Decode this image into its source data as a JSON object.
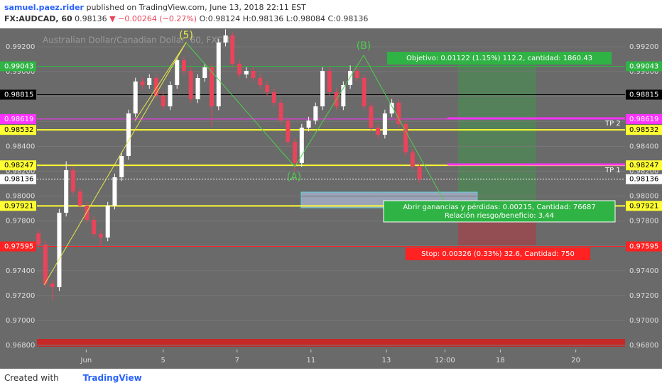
{
  "header": {
    "author": "samuel.paez.rider",
    "published": "published on TradingView.com, June 13, 2018 22:11 EST",
    "symbol": "FX:AUDCAD, 60",
    "last": "0.98136",
    "change": "▼ −0.00264 (−0.27%)",
    "ohlc": "O:0.98124 H:0.98136 L:0.98084 C:0.98136"
  },
  "footer": {
    "created": "Created with",
    "brand": "TradingView"
  },
  "chart_data": {
    "type": "candlestick",
    "title": "Australian Dollar/Canadian Dollar, 60, FXCM",
    "up_color": "#ffffff",
    "down_color": "#e8445a",
    "background": "#6a6a6a",
    "x": [
      1,
      5.5,
      10,
      14.5,
      19,
      23.5,
      28,
      32.5,
      37,
      41.5,
      46,
      50.5,
      55,
      59.5,
      64,
      68.5,
      73,
      77.5,
      82,
      86.5,
      91,
      95.5,
      100,
      104.5,
      109,
      113.5,
      118,
      122.5,
      127,
      131.5,
      136,
      140.5,
      145,
      149.5,
      154,
      158.5,
      163,
      167.5,
      172,
      176.5,
      181,
      185.5,
      190,
      194.5,
      199,
      203.5,
      208,
      212.5,
      217,
      221.5,
      226,
      230.5,
      235,
      239.5,
      244,
      248.5
    ],
    "open": [
      0.977,
      0.9761,
      0.97296,
      0.97268,
      0.97866,
      0.98208,
      0.98037,
      0.97923,
      0.97809,
      0.97695,
      0.97667,
      0.97923,
      0.98151,
      0.98322,
      0.98664,
      0.98921,
      0.98892,
      0.98949,
      0.98807,
      0.98721,
      0.98892,
      0.99092,
      0.99006,
      0.98778,
      0.98949,
      0.99035,
      0.98721,
      0.99234,
      0.99291,
      0.99063,
      0.98978,
      0.99006,
      0.98949,
      0.98892,
      0.98835,
      0.9875,
      0.98607,
      0.98436,
      0.98265,
      0.9855,
      0.98607,
      0.98721,
      0.99006,
      0.98835,
      0.98721,
      0.98892,
      0.99006,
      0.98949,
      0.98721,
      0.9855,
      0.98493,
      0.98664,
      0.9875,
      0.98579,
      0.98351,
      0.98237
    ],
    "high": [
      0.9773,
      0.9764,
      0.97326,
      0.97896,
      0.9828,
      0.98238,
      0.98067,
      0.97953,
      0.97839,
      0.97725,
      0.97953,
      0.98181,
      0.98352,
      0.98694,
      0.98951,
      0.98951,
      0.98979,
      0.98979,
      0.98837,
      0.98922,
      0.99122,
      0.99122,
      0.99036,
      0.98979,
      0.99065,
      0.99065,
      0.99264,
      0.9934,
      0.99321,
      0.99093,
      0.99036,
      0.99036,
      0.98979,
      0.98922,
      0.98865,
      0.9878,
      0.98637,
      0.98466,
      0.9858,
      0.98637,
      0.98751,
      0.99036,
      0.99036,
      0.98865,
      0.98922,
      0.9905,
      0.99036,
      0.98979,
      0.98751,
      0.9858,
      0.98694,
      0.9878,
      0.9878,
      0.98609,
      0.98381,
      0.98267
    ],
    "low": [
      0.9758,
      0.97266,
      0.9716,
      0.97238,
      0.97836,
      0.98007,
      0.97893,
      0.97779,
      0.97665,
      0.976,
      0.97637,
      0.97893,
      0.98121,
      0.98292,
      0.98634,
      0.98862,
      0.98862,
      0.98777,
      0.98691,
      0.98691,
      0.98862,
      0.98976,
      0.98748,
      0.98748,
      0.98919,
      0.9856,
      0.98691,
      0.99204,
      0.99033,
      0.98948,
      0.98948,
      0.98919,
      0.98862,
      0.98805,
      0.9872,
      0.98577,
      0.98406,
      0.982,
      0.98235,
      0.9852,
      0.98577,
      0.98691,
      0.98805,
      0.98691,
      0.98691,
      0.98862,
      0.98919,
      0.98691,
      0.9852,
      0.98463,
      0.98463,
      0.98634,
      0.98549,
      0.98321,
      0.98207,
      0.98106
    ],
    "close": [
      0.9761,
      0.97296,
      0.97268,
      0.97866,
      0.98208,
      0.98037,
      0.97923,
      0.97809,
      0.97695,
      0.97667,
      0.97923,
      0.98151,
      0.98322,
      0.98664,
      0.98921,
      0.98892,
      0.98949,
      0.98807,
      0.98721,
      0.98892,
      0.99092,
      0.99006,
      0.98778,
      0.98949,
      0.99035,
      0.98721,
      0.99234,
      0.99291,
      0.99063,
      0.98978,
      0.99006,
      0.98949,
      0.98892,
      0.98835,
      0.9875,
      0.98607,
      0.98436,
      0.98265,
      0.9855,
      0.98607,
      0.98721,
      0.99006,
      0.98835,
      0.98721,
      0.98892,
      0.99006,
      0.98949,
      0.98721,
      0.9855,
      0.98493,
      0.98664,
      0.9875,
      0.98579,
      0.98351,
      0.98237,
      0.98136
    ],
    "xlim": [
      0,
      382
    ],
    "xticks": [
      {
        "value": 32,
        "label": "Jun"
      },
      {
        "value": 82,
        "label": "5"
      },
      {
        "value": 130,
        "label": "7"
      },
      {
        "value": 178,
        "label": "11"
      },
      {
        "value": 227,
        "label": "13"
      },
      {
        "value": 265,
        "label": "12:00"
      },
      {
        "value": 301,
        "label": "18"
      },
      {
        "value": 350,
        "label": "20"
      }
    ],
    "ylim": [
      0.96783,
      0.99348
    ],
    "yticks": [
      {
        "value": 0.968,
        "label": "0.96800"
      },
      {
        "value": 0.97,
        "label": "0.97000"
      },
      {
        "value": 0.972,
        "label": "0.97200"
      },
      {
        "value": 0.974,
        "label": "0.97400"
      },
      {
        "value": 0.976,
        "label": "0.97600"
      },
      {
        "value": 0.978,
        "label": "0.97800"
      },
      {
        "value": 0.98,
        "label": "0.98000"
      },
      {
        "value": 0.982,
        "label": "0.98200"
      },
      {
        "value": 0.984,
        "label": "0.98400"
      },
      {
        "value": 0.986,
        "label": "0.98600"
      },
      {
        "value": 0.988,
        "label": "0.98800"
      },
      {
        "value": 0.99,
        "label": "0.99000"
      },
      {
        "value": 0.992,
        "label": "0.99200"
      }
    ],
    "grid": true,
    "price_levels": [
      {
        "value": 0.99043,
        "label": "0.99043",
        "color": "#2fb344"
      },
      {
        "value": 0.98815,
        "label": "0.98815",
        "color": "#000000"
      },
      {
        "value": 0.98619,
        "label": "0.98619",
        "color": "#ff33ff"
      },
      {
        "value": 0.98532,
        "label": "0.98532",
        "color": "#ffff33"
      },
      {
        "value": 0.98247,
        "label": "0.98247",
        "color": "#ffff33"
      },
      {
        "value": 0.98136,
        "label": "0.98136",
        "color": "#ffffff"
      },
      {
        "value": 0.97921,
        "label": "0.97921",
        "color": "#ffff33"
      },
      {
        "value": 0.97595,
        "label": "0.97595",
        "color": "#ff2222"
      }
    ],
    "annotations": {
      "wave5": "(5)",
      "waveA": "(A)",
      "waveB": "(B)",
      "tp1": "TP 1",
      "tp2": "TP 2",
      "target": "Objetivo: 0.01122 (1.15%) 112.2, cantidad: 1860.43",
      "open_pl": "Abrir ganancias y pérdidas: 0.00215, Cantidad: 76687",
      "ratio": "Relación riesgo/beneficio: 3.44",
      "stop": "Stop: 0.00326 (0.33%) 32.6, Cantidad: 750"
    }
  }
}
